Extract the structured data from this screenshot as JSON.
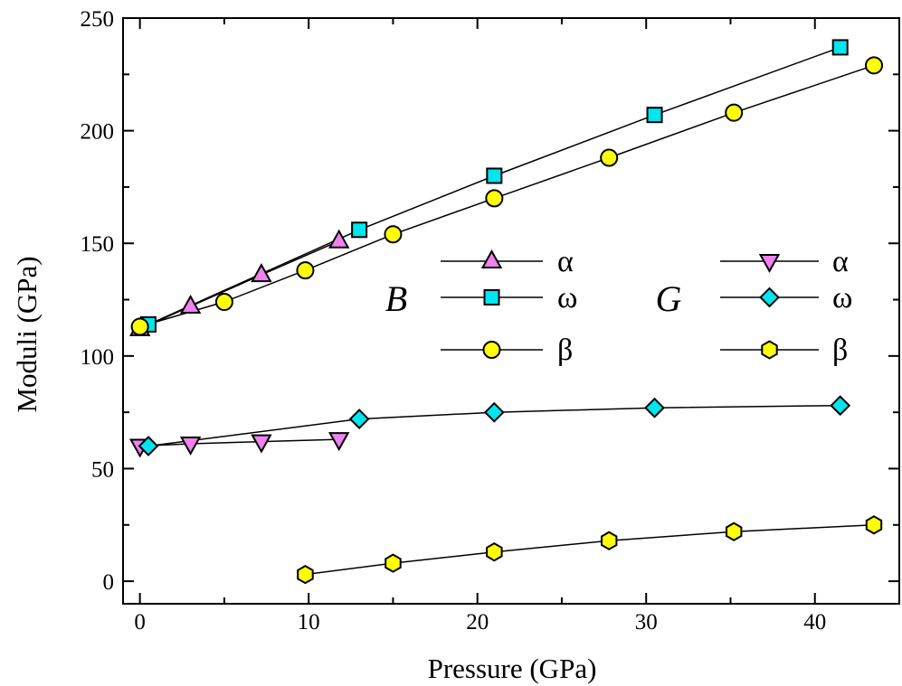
{
  "chart_data": {
    "type": "line",
    "title": "",
    "xlabel": "Pressure (GPa)",
    "ylabel": "Moduli (GPa)",
    "xlim": [
      -1,
      45
    ],
    "ylim": [
      -10,
      250
    ],
    "xticks": [
      0,
      10,
      20,
      30,
      40
    ],
    "yticks": [
      0,
      50,
      100,
      150,
      200,
      250
    ],
    "grid": false,
    "legend": {
      "placement": "center-right",
      "groups": [
        {
          "label": "B",
          "entries": [
            "α",
            "ω",
            "β"
          ]
        },
        {
          "label": "G",
          "entries": [
            "α",
            "ω",
            "β"
          ]
        }
      ]
    },
    "series": [
      {
        "name": "α",
        "group": "B",
        "marker": "triangle-up",
        "color": "#ee82ee",
        "x": [
          0,
          3,
          7.2,
          11.8
        ],
        "y": [
          112,
          122,
          136,
          151
        ]
      },
      {
        "name": "ω",
        "group": "B",
        "marker": "square",
        "color": "#00e5ee",
        "x": [
          0.5,
          13,
          21,
          30.5,
          41.5
        ],
        "y": [
          114,
          156,
          180,
          207,
          237
        ]
      },
      {
        "name": "β",
        "group": "B",
        "marker": "circle",
        "color": "#ffff00",
        "x": [
          0,
          5,
          9.8,
          15,
          21,
          27.8,
          35.2,
          43.5
        ],
        "y": [
          113,
          124,
          138,
          154,
          170,
          188,
          208,
          229
        ]
      },
      {
        "name": "α",
        "group": "G",
        "marker": "triangle-down",
        "color": "#ee82ee",
        "x": [
          0,
          3,
          7.2,
          11.8
        ],
        "y": [
          60,
          61,
          62,
          63
        ]
      },
      {
        "name": "ω",
        "group": "G",
        "marker": "diamond",
        "color": "#00e5ee",
        "x": [
          0.5,
          13,
          21,
          30.5,
          41.5
        ],
        "y": [
          60,
          72,
          75,
          77,
          78
        ]
      },
      {
        "name": "β",
        "group": "G",
        "marker": "hexagon",
        "color": "#ffff00",
        "x": [
          9.8,
          15,
          21,
          27.8,
          35.2,
          43.5
        ],
        "y": [
          3,
          8,
          13,
          18,
          22,
          25
        ]
      }
    ]
  }
}
